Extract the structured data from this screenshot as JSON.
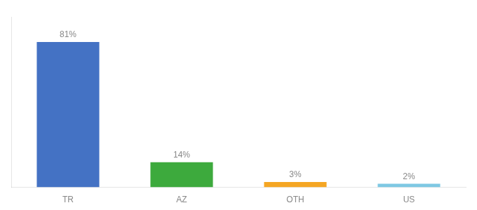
{
  "chart_data": {
    "type": "bar",
    "categories": [
      "TR",
      "AZ",
      "OTH",
      "US"
    ],
    "values": [
      81,
      14,
      3,
      2
    ],
    "value_labels": [
      "81%",
      "14%",
      "3%",
      "2%"
    ],
    "colors": [
      "#4472c4",
      "#3daa3d",
      "#f5a623",
      "#7ec8e3"
    ],
    "ylim": [
      0,
      95
    ],
    "grid": false,
    "data_labels": true,
    "tick_labels": "x"
  }
}
